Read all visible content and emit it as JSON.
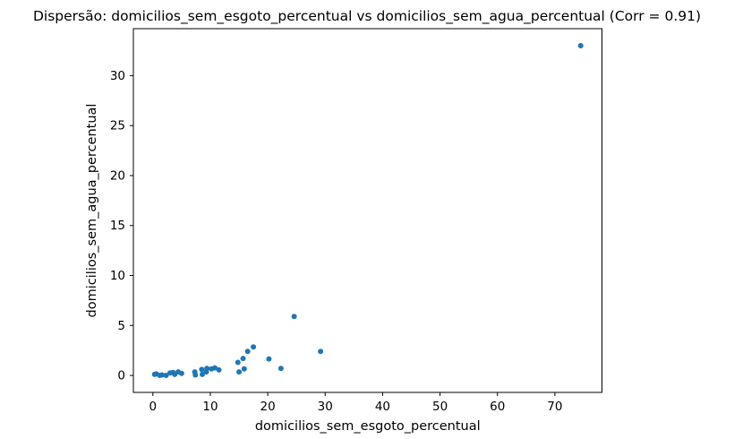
{
  "title": "Dispersão: domicilios_sem_esgoto_percentual vs domicilios_sem_agua_percentual (Corr = 0.91)",
  "chart_data": {
    "type": "scatter",
    "title": "Dispersão: domicilios_sem_esgoto_percentual vs domicilios_sem_agua_percentual (Corr = 0.91)",
    "xlabel": "domicilios_sem_esgoto_percentual",
    "ylabel": "domicilios_sem_agua_percentual",
    "correlation": 0.91,
    "marker_color": "#1f77b4",
    "spine_color": "#000000",
    "grid": false,
    "legend": "none",
    "xlim": [
      -3.4,
      78.2
    ],
    "ylim": [
      -1.7,
      34.7
    ],
    "xticks": [
      0,
      10,
      20,
      30,
      40,
      50,
      60,
      70
    ],
    "yticks": [
      0,
      5,
      10,
      15,
      20,
      25,
      30
    ],
    "points": [
      [
        0.3,
        0.1
      ],
      [
        0.6,
        0.15
      ],
      [
        1.2,
        0.0
      ],
      [
        1.6,
        0.05
      ],
      [
        2.3,
        0.0
      ],
      [
        3.0,
        0.25
      ],
      [
        3.5,
        0.3
      ],
      [
        3.8,
        0.1
      ],
      [
        4.4,
        0.35
      ],
      [
        5.0,
        0.2
      ],
      [
        7.3,
        0.35
      ],
      [
        7.4,
        0.05
      ],
      [
        8.5,
        0.6
      ],
      [
        8.6,
        0.1
      ],
      [
        9.3,
        0.35
      ],
      [
        9.4,
        0.7
      ],
      [
        10.2,
        0.65
      ],
      [
        10.8,
        0.75
      ],
      [
        11.5,
        0.55
      ],
      [
        14.8,
        1.3
      ],
      [
        15.0,
        0.35
      ],
      [
        15.7,
        1.7
      ],
      [
        15.9,
        0.65
      ],
      [
        16.5,
        2.4
      ],
      [
        17.5,
        2.85
      ],
      [
        20.2,
        1.65
      ],
      [
        22.3,
        0.7
      ],
      [
        24.6,
        5.9
      ],
      [
        29.2,
        2.4
      ],
      [
        74.5,
        33.0
      ]
    ]
  }
}
